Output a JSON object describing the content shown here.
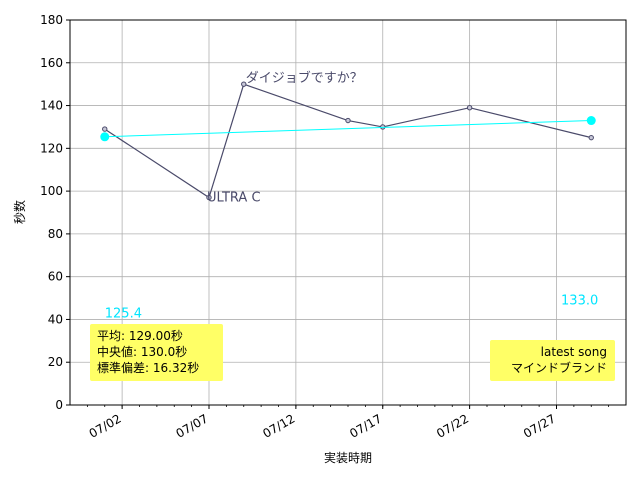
{
  "chart_data": {
    "type": "line",
    "xlabel": "実装時期",
    "ylabel": "秒数",
    "ylim": [
      0,
      180
    ],
    "yticks": [
      0,
      20,
      40,
      60,
      80,
      100,
      120,
      140,
      160,
      180
    ],
    "xlim": [
      "2025-06-29",
      "2025-07-31"
    ],
    "xticks": [
      "07/02",
      "07/07",
      "07/12",
      "07/17",
      "07/22",
      "07/27"
    ],
    "grid": true,
    "series": [
      {
        "color": "#4a4a6a",
        "points": [
          {
            "x": "2025-07-01",
            "y": 129
          },
          {
            "x": "2025-07-07",
            "y": 97
          },
          {
            "x": "2025-07-09",
            "y": 150
          },
          {
            "x": "2025-07-15",
            "y": 133
          },
          {
            "x": "2025-07-17",
            "y": 130
          },
          {
            "x": "2025-07-22",
            "y": 139
          },
          {
            "x": "2025-07-29",
            "y": 125
          }
        ]
      },
      {
        "color": "#00ffff",
        "points": [
          {
            "x": "2025-07-01",
            "y": 125.4
          },
          {
            "x": "2025-07-29",
            "y": 133.0
          }
        ]
      }
    ],
    "annotations": [
      {
        "text": "ダイジョブですか？",
        "x": "2025-07-09",
        "y": 150,
        "color": "#4a4a6a"
      },
      {
        "text": "ULTRA C",
        "x": "2025-07-07",
        "y": 97,
        "color": "#4a4a6a"
      },
      {
        "text": "125.4",
        "x": "2025-07-01",
        "y": 125.4,
        "color": "#00e5ff"
      },
      {
        "text": "133.0",
        "x": "2025-07-29",
        "y": 133.0,
        "color": "#00e5ff"
      }
    ],
    "stats_box": {
      "lines": [
        "平均: 129.00秒",
        "中央値: 130.0秒",
        "標準偏差:  16.32秒"
      ],
      "background": "#ffff66"
    },
    "latest_box": {
      "lines": [
        "latest song",
        "マインドブランド"
      ],
      "background": "#ffff66"
    }
  }
}
